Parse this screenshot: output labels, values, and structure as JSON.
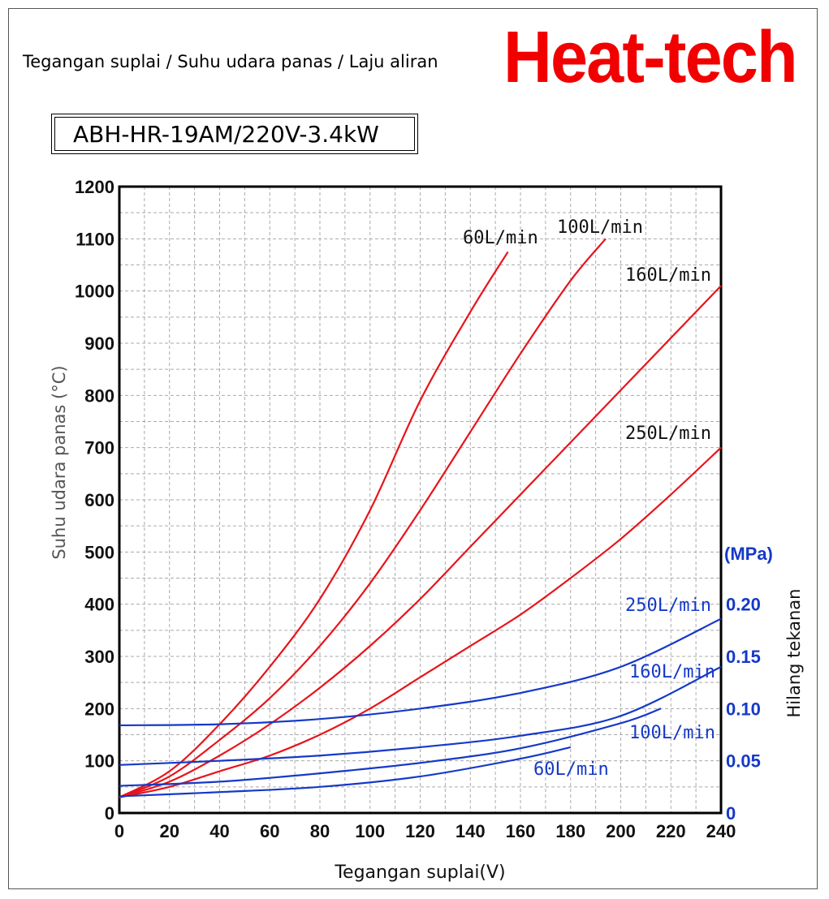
{
  "header": {
    "title": "Tegangan suplai / Suhu udara panas / Laju aliran",
    "brand": "Heat-tech",
    "model": "ABH-HR-19AM/220V-3.4kW"
  },
  "colors": {
    "temperature": "#e8141b",
    "pressure": "#1539c8",
    "grid": "#aaaaaa",
    "brand": "#f20000"
  },
  "chart_data": {
    "type": "line",
    "xlabel": "Tegangan suplai(V)",
    "ylabel": "Suhu udara panas (°C)",
    "y2label": "Hilang tekanan",
    "y2unit": "(MPa)",
    "xlim": [
      0,
      240
    ],
    "ylim": [
      0,
      1200
    ],
    "y2lim": [
      0,
      0.6
    ],
    "grid": true,
    "xticks": [
      "0",
      "20",
      "40",
      "60",
      "80",
      "100",
      "120",
      "140",
      "160",
      "180",
      "200",
      "220",
      "240"
    ],
    "yticks": [
      "0",
      "100",
      "200",
      "300",
      "400",
      "500",
      "600",
      "700",
      "800",
      "900",
      "1000",
      "1100",
      "1200"
    ],
    "y2ticks": [
      "0",
      "0.05",
      "0.10",
      "0.15",
      "0.20"
    ],
    "temperature_series": [
      {
        "name": "60L/min",
        "points": [
          [
            0,
            30
          ],
          [
            20,
            80
          ],
          [
            40,
            170
          ],
          [
            60,
            280
          ],
          [
            80,
            410
          ],
          [
            100,
            580
          ],
          [
            120,
            790
          ],
          [
            140,
            960
          ],
          [
            155,
            1075
          ]
        ]
      },
      {
        "name": "100L/min",
        "points": [
          [
            0,
            30
          ],
          [
            20,
            70
          ],
          [
            40,
            140
          ],
          [
            60,
            220
          ],
          [
            80,
            320
          ],
          [
            100,
            440
          ],
          [
            120,
            580
          ],
          [
            140,
            730
          ],
          [
            160,
            880
          ],
          [
            180,
            1020
          ],
          [
            194,
            1100
          ]
        ]
      },
      {
        "name": "160L/min",
        "points": [
          [
            0,
            30
          ],
          [
            20,
            60
          ],
          [
            40,
            110
          ],
          [
            60,
            170
          ],
          [
            80,
            240
          ],
          [
            100,
            320
          ],
          [
            120,
            410
          ],
          [
            140,
            510
          ],
          [
            160,
            610
          ],
          [
            180,
            710
          ],
          [
            200,
            810
          ],
          [
            220,
            910
          ],
          [
            240,
            1010
          ]
        ]
      },
      {
        "name": "250L/min",
        "points": [
          [
            0,
            30
          ],
          [
            20,
            50
          ],
          [
            40,
            80
          ],
          [
            60,
            110
          ],
          [
            80,
            150
          ],
          [
            100,
            200
          ],
          [
            120,
            260
          ],
          [
            140,
            320
          ],
          [
            160,
            380
          ],
          [
            180,
            450
          ],
          [
            200,
            525
          ],
          [
            220,
            610
          ],
          [
            240,
            700
          ]
        ]
      }
    ],
    "pressure_series": [
      {
        "name": "250L/min",
        "points": [
          [
            0,
            0.084
          ],
          [
            40,
            0.085
          ],
          [
            80,
            0.09
          ],
          [
            120,
            0.1
          ],
          [
            160,
            0.115
          ],
          [
            200,
            0.14
          ],
          [
            240,
            0.186
          ]
        ]
      },
      {
        "name": "160L/min",
        "points": [
          [
            0,
            0.046
          ],
          [
            40,
            0.05
          ],
          [
            80,
            0.055
          ],
          [
            120,
            0.063
          ],
          [
            160,
            0.074
          ],
          [
            200,
            0.093
          ],
          [
            240,
            0.14
          ]
        ]
      },
      {
        "name": "100L/min",
        "points": [
          [
            0,
            0.026
          ],
          [
            40,
            0.03
          ],
          [
            80,
            0.038
          ],
          [
            120,
            0.048
          ],
          [
            160,
            0.062
          ],
          [
            200,
            0.086
          ],
          [
            216,
            0.1
          ]
        ]
      },
      {
        "name": "60L/min",
        "points": [
          [
            0,
            0.016
          ],
          [
            40,
            0.02
          ],
          [
            80,
            0.025
          ],
          [
            120,
            0.035
          ],
          [
            160,
            0.052
          ],
          [
            180,
            0.063
          ]
        ]
      }
    ]
  }
}
